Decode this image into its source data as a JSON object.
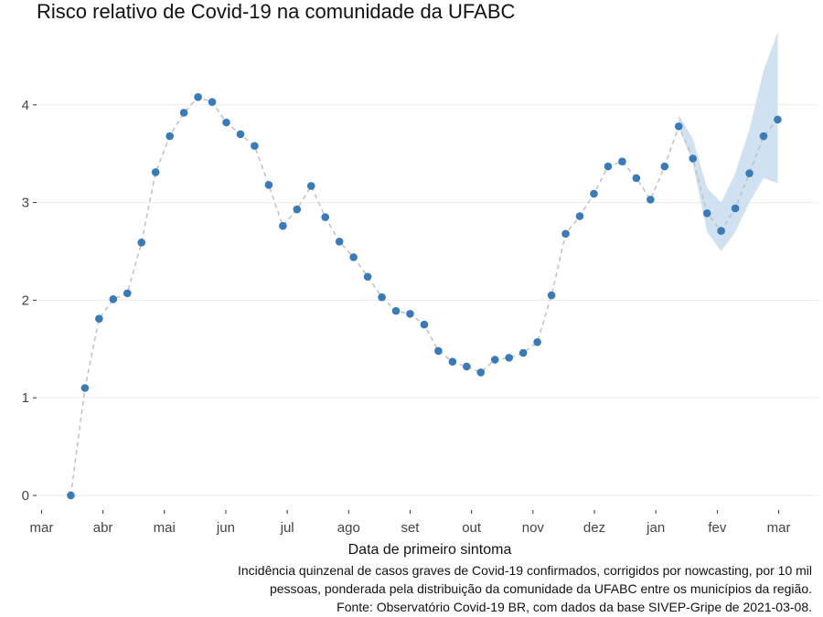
{
  "chart_data": {
    "type": "line",
    "title": "Risco relativo de Covid-19 na comunidade da UFABC",
    "xlabel": "Data de primeiro sintoma",
    "ylabel": "",
    "ylim": [
      -0.15,
      4.7
    ],
    "yticks": [
      0,
      1,
      2,
      3,
      4
    ],
    "x_month_ticks": [
      "mar",
      "abr",
      "mai",
      "jun",
      "jul",
      "ago",
      "set",
      "out",
      "nov",
      "dez",
      "jan",
      "fev",
      "mar"
    ],
    "x_unit": "weeks since first month tick (mar)",
    "series": [
      {
        "name": "risco relativo",
        "points": [
          [
            2.07,
            0.0
          ],
          [
            3.07,
            1.1
          ],
          [
            4.07,
            1.81
          ],
          [
            5.07,
            2.01
          ],
          [
            6.07,
            2.07
          ],
          [
            7.07,
            2.59
          ],
          [
            8.07,
            3.31
          ],
          [
            9.07,
            3.68
          ],
          [
            10.07,
            3.92
          ],
          [
            11.07,
            4.08
          ],
          [
            12.07,
            4.03
          ],
          [
            13.07,
            3.82
          ],
          [
            14.07,
            3.7
          ],
          [
            15.07,
            3.58
          ],
          [
            16.07,
            3.18
          ],
          [
            17.07,
            2.76
          ],
          [
            18.07,
            2.93
          ],
          [
            19.07,
            3.17
          ],
          [
            20.07,
            2.85
          ],
          [
            21.07,
            2.6
          ],
          [
            22.07,
            2.44
          ],
          [
            23.07,
            2.24
          ],
          [
            24.07,
            2.03
          ],
          [
            25.07,
            1.89
          ],
          [
            26.07,
            1.86
          ],
          [
            27.07,
            1.75
          ],
          [
            28.07,
            1.48
          ],
          [
            29.07,
            1.37
          ],
          [
            30.07,
            1.32
          ],
          [
            31.07,
            1.26
          ],
          [
            32.07,
            1.39
          ],
          [
            33.07,
            1.41
          ],
          [
            34.07,
            1.46
          ],
          [
            35.07,
            1.57
          ],
          [
            36.07,
            2.05
          ],
          [
            37.07,
            2.68
          ],
          [
            38.07,
            2.86
          ],
          [
            39.07,
            3.09
          ],
          [
            40.07,
            3.37
          ],
          [
            41.07,
            3.42
          ],
          [
            42.07,
            3.25
          ],
          [
            43.07,
            3.03
          ],
          [
            44.07,
            3.37
          ],
          [
            45.07,
            3.78
          ],
          [
            46.07,
            3.45
          ],
          [
            47.07,
            2.89
          ],
          [
            48.07,
            2.71
          ],
          [
            49.07,
            2.94
          ],
          [
            50.07,
            3.3
          ],
          [
            51.07,
            3.68
          ],
          [
            52.07,
            3.85
          ]
        ]
      }
    ],
    "confidence_band": {
      "name": "intervalo nowcasting",
      "x": [
        45.07,
        46.07,
        47.07,
        48.07,
        49.07,
        50.07,
        51.07,
        52.07
      ],
      "lower": [
        3.78,
        3.4,
        2.7,
        2.5,
        2.7,
        3.0,
        3.25,
        3.2
      ],
      "upper": [
        3.9,
        3.65,
        3.15,
        3.0,
        3.3,
        3.75,
        4.35,
        4.75
      ]
    },
    "colors": {
      "point": "#3a7ab8",
      "line": "#c0c0c0",
      "band": "#c8dcee",
      "grid": "#ebebeb"
    }
  },
  "caption": {
    "line1": "Incidência quinzenal de casos graves de Covid-19 confirmados, corrigidos por nowcasting, por 10 mil",
    "line2": "pessoas, ponderada pela distribuição da comunidade da UFABC entre os municípios da região.",
    "line3": "Fonte: Observatório Covid-19 BR, com dados da base SIVEP-Gripe de 2021-03-08."
  }
}
